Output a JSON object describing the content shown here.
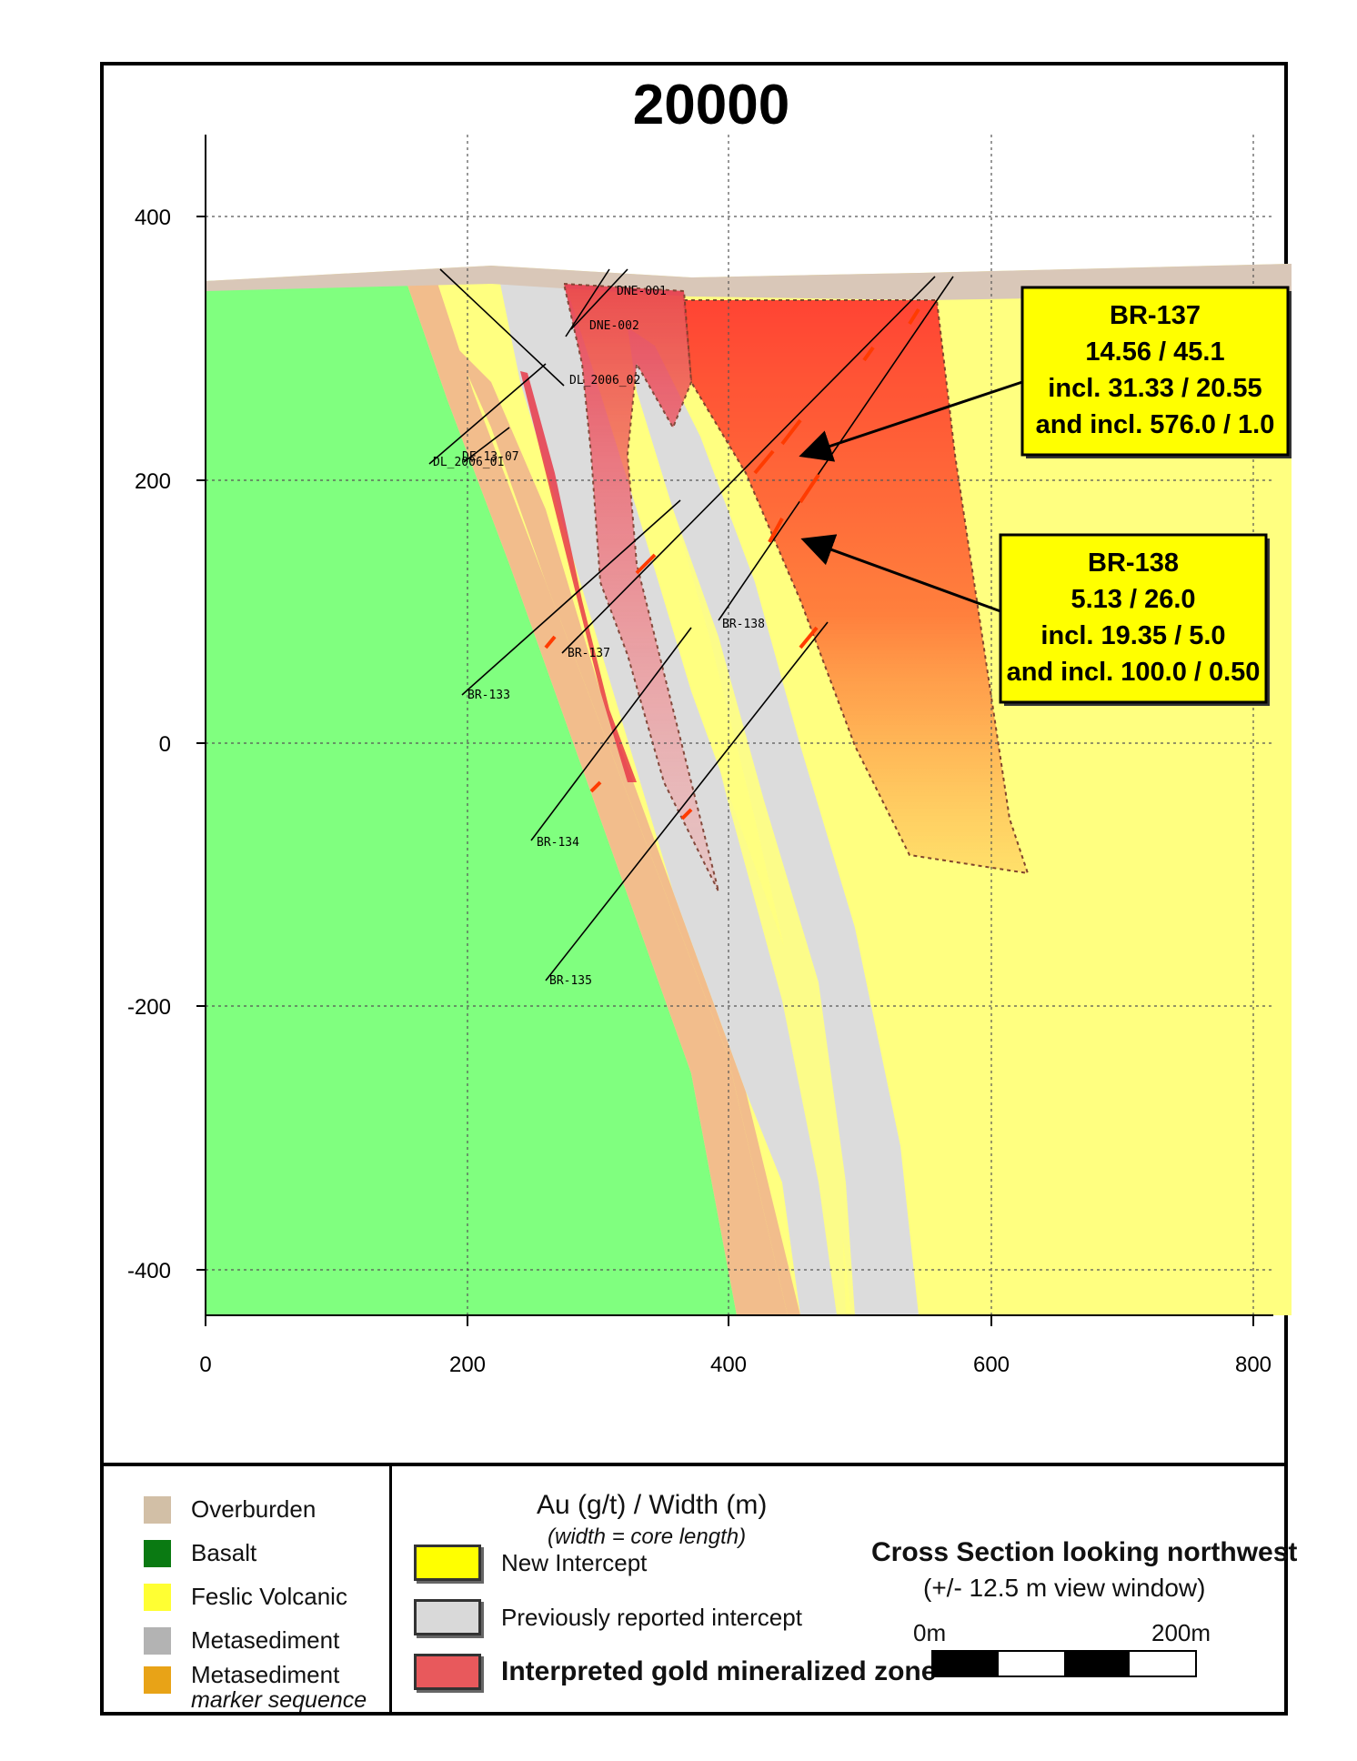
{
  "section_title": "20000",
  "axes": {
    "x_ticks": [
      "0",
      "200",
      "400",
      "600",
      "800"
    ],
    "y_ticks": [
      "400",
      "200",
      "0",
      "-200",
      "-400"
    ]
  },
  "drill_holes": [
    "DNE-001",
    "DNE-002",
    "DL_2006_02",
    "DL_2006_01",
    "DE-13-07",
    "BR-138",
    "BR-137",
    "BR-133",
    "BR-134",
    "BR-135"
  ],
  "callouts": [
    {
      "hole": "BR-137",
      "line1": "14.56 / 45.1",
      "line2": "incl. 31.33 / 20.55",
      "line3": "and incl. 576.0 / 1.0"
    },
    {
      "hole": "BR-138",
      "line1": "5.13 / 26.0",
      "line2": "incl. 19.35 / 5.0",
      "line3": "and incl. 100.0 / 0.50"
    }
  ],
  "legend": {
    "lithology": [
      {
        "label": "Overburden",
        "color": "#d2bfa6"
      },
      {
        "label": "Basalt",
        "color": "#0a7a12"
      },
      {
        "label": "Feslic Volcanic",
        "color": "#ffff33"
      },
      {
        "label": "Metasediment",
        "color": "#b3b3b3"
      },
      {
        "label": "Metasediment",
        "sub": "marker sequence",
        "color": "#e8a317"
      }
    ],
    "intercepts_title": "Au (g/t) / Width (m)",
    "intercepts_subtitle": "(width = core length)",
    "intercepts": [
      {
        "label": "New Intercept",
        "color": "#ffff00"
      },
      {
        "label": "Previously reported  intercept",
        "color": "#d9d9d9"
      },
      {
        "label": "Interpreted gold mineralized zone",
        "color": "#e8595c"
      }
    ],
    "section_label": "Cross Section looking northwest",
    "view_window": "(+/- 12.5 m view window)",
    "scale_start": "0m",
    "scale_end": "200m"
  },
  "colors": {
    "basalt": "#80ff7f",
    "felsic": "#ffff80",
    "metased": "#dcdcdc",
    "marker": "#f2bd8c",
    "overburden": "#d9c7b8",
    "zone": "#ff4a2b",
    "callout_bg": "#ffff00"
  }
}
